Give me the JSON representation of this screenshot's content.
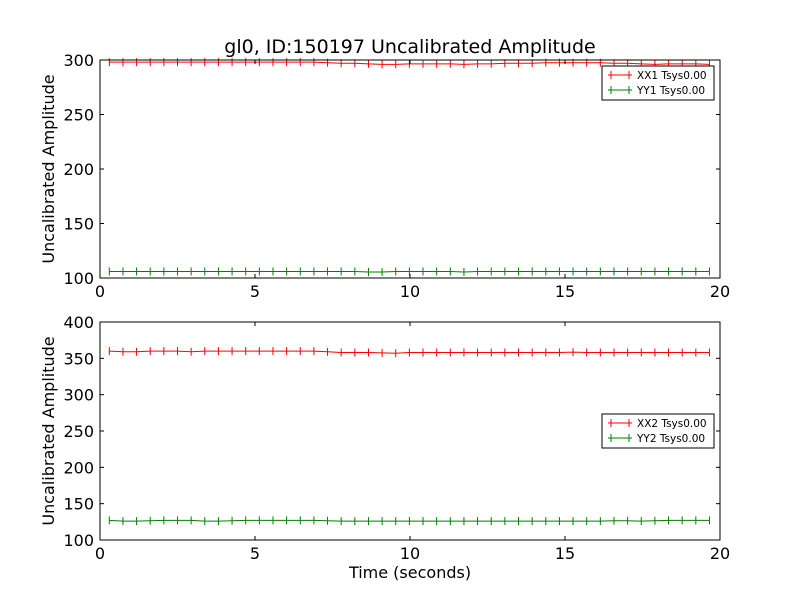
{
  "chart_data": [
    {
      "type": "line",
      "title": "gl0, ID:150197 Uncalibrated Amplitude",
      "xlabel": "",
      "ylabel": "Uncalibrated Amplitude",
      "xlim": [
        0,
        20
      ],
      "ylim": [
        100,
        300
      ],
      "xticks": [
        "0",
        "5",
        "10",
        "15",
        "20"
      ],
      "yticks": [
        "100",
        "150",
        "200",
        "250",
        "300"
      ],
      "legend_position": "top-right",
      "x": [
        0.3,
        0.74,
        1.18,
        1.62,
        2.06,
        2.5,
        2.94,
        3.38,
        3.82,
        4.26,
        4.7,
        5.14,
        5.58,
        6.02,
        6.46,
        6.9,
        7.34,
        7.78,
        8.22,
        8.66,
        9.1,
        9.54,
        9.98,
        10.42,
        10.86,
        11.3,
        11.74,
        12.18,
        12.62,
        13.06,
        13.5,
        13.94,
        14.38,
        14.82,
        15.26,
        15.7,
        16.14,
        16.58,
        17.02,
        17.46,
        17.9,
        18.34,
        18.78,
        19.22,
        19.66
      ],
      "series": [
        {
          "name": "XX1 Tsys0.00",
          "color": "#ff0000",
          "values": [
            298,
            298,
            298,
            298,
            298,
            298,
            298,
            298,
            298,
            298,
            298,
            298,
            298,
            298,
            298,
            298,
            297.5,
            297,
            297,
            296.5,
            296,
            296,
            296.5,
            296.5,
            296.5,
            296.5,
            296,
            296.5,
            296.5,
            297,
            297,
            297,
            297.5,
            297.5,
            297.5,
            297.5,
            297.5,
            297,
            297,
            296.5,
            296,
            296.5,
            296.5,
            296.5,
            296
          ]
        },
        {
          "name": "YY1 Tsys0.00",
          "color": "#008000",
          "values": [
            106,
            106,
            106,
            106,
            106,
            106,
            106,
            106,
            106,
            106,
            106,
            106,
            106,
            106,
            106,
            106,
            106,
            106,
            106,
            105.5,
            105.5,
            106,
            106,
            106,
            106,
            106,
            105.5,
            106,
            106,
            106,
            106,
            106,
            106,
            106,
            106,
            106,
            106,
            106,
            106,
            106,
            106,
            106,
            106,
            106,
            106
          ]
        }
      ]
    },
    {
      "type": "line",
      "title": "",
      "xlabel": "Time (seconds)",
      "ylabel": "Uncalibrated Amplitude",
      "xlim": [
        0,
        20
      ],
      "ylim": [
        100,
        400
      ],
      "xticks": [
        "0",
        "5",
        "10",
        "15",
        "20"
      ],
      "yticks": [
        "100",
        "150",
        "200",
        "250",
        "300",
        "350",
        "400"
      ],
      "legend_position": "center-right",
      "x": [
        0.3,
        0.74,
        1.18,
        1.62,
        2.06,
        2.5,
        2.94,
        3.38,
        3.82,
        4.26,
        4.7,
        5.14,
        5.58,
        6.02,
        6.46,
        6.9,
        7.34,
        7.78,
        8.22,
        8.66,
        9.1,
        9.54,
        9.98,
        10.42,
        10.86,
        11.3,
        11.74,
        12.18,
        12.62,
        13.06,
        13.5,
        13.94,
        14.38,
        14.82,
        15.26,
        15.7,
        16.14,
        16.58,
        17.02,
        17.46,
        17.9,
        18.34,
        18.78,
        19.22,
        19.66
      ],
      "series": [
        {
          "name": "XX2 Tsys0.00",
          "color": "#ff0000",
          "values": [
            360,
            359,
            359,
            360,
            360,
            360,
            359,
            360,
            360,
            360,
            360,
            360,
            360,
            360,
            360,
            360,
            359,
            358,
            358,
            358,
            357.5,
            357,
            358,
            358,
            358,
            358,
            358,
            358,
            358,
            358,
            358,
            358,
            358,
            358,
            358.5,
            358,
            358,
            358,
            358,
            358,
            358,
            358,
            358,
            358,
            358
          ]
        },
        {
          "name": "YY2 Tsys0.00",
          "color": "#008000",
          "values": [
            127,
            126,
            126,
            126.5,
            127,
            127,
            127,
            126,
            126,
            126.5,
            127,
            127,
            127,
            127,
            127,
            127,
            126.5,
            126,
            126,
            126,
            126,
            126,
            126,
            126,
            126,
            126,
            126,
            126,
            126,
            126,
            126,
            126,
            126,
            126,
            126,
            126,
            126,
            126.5,
            126.5,
            126,
            126.5,
            127,
            127,
            127,
            127
          ]
        }
      ]
    }
  ]
}
